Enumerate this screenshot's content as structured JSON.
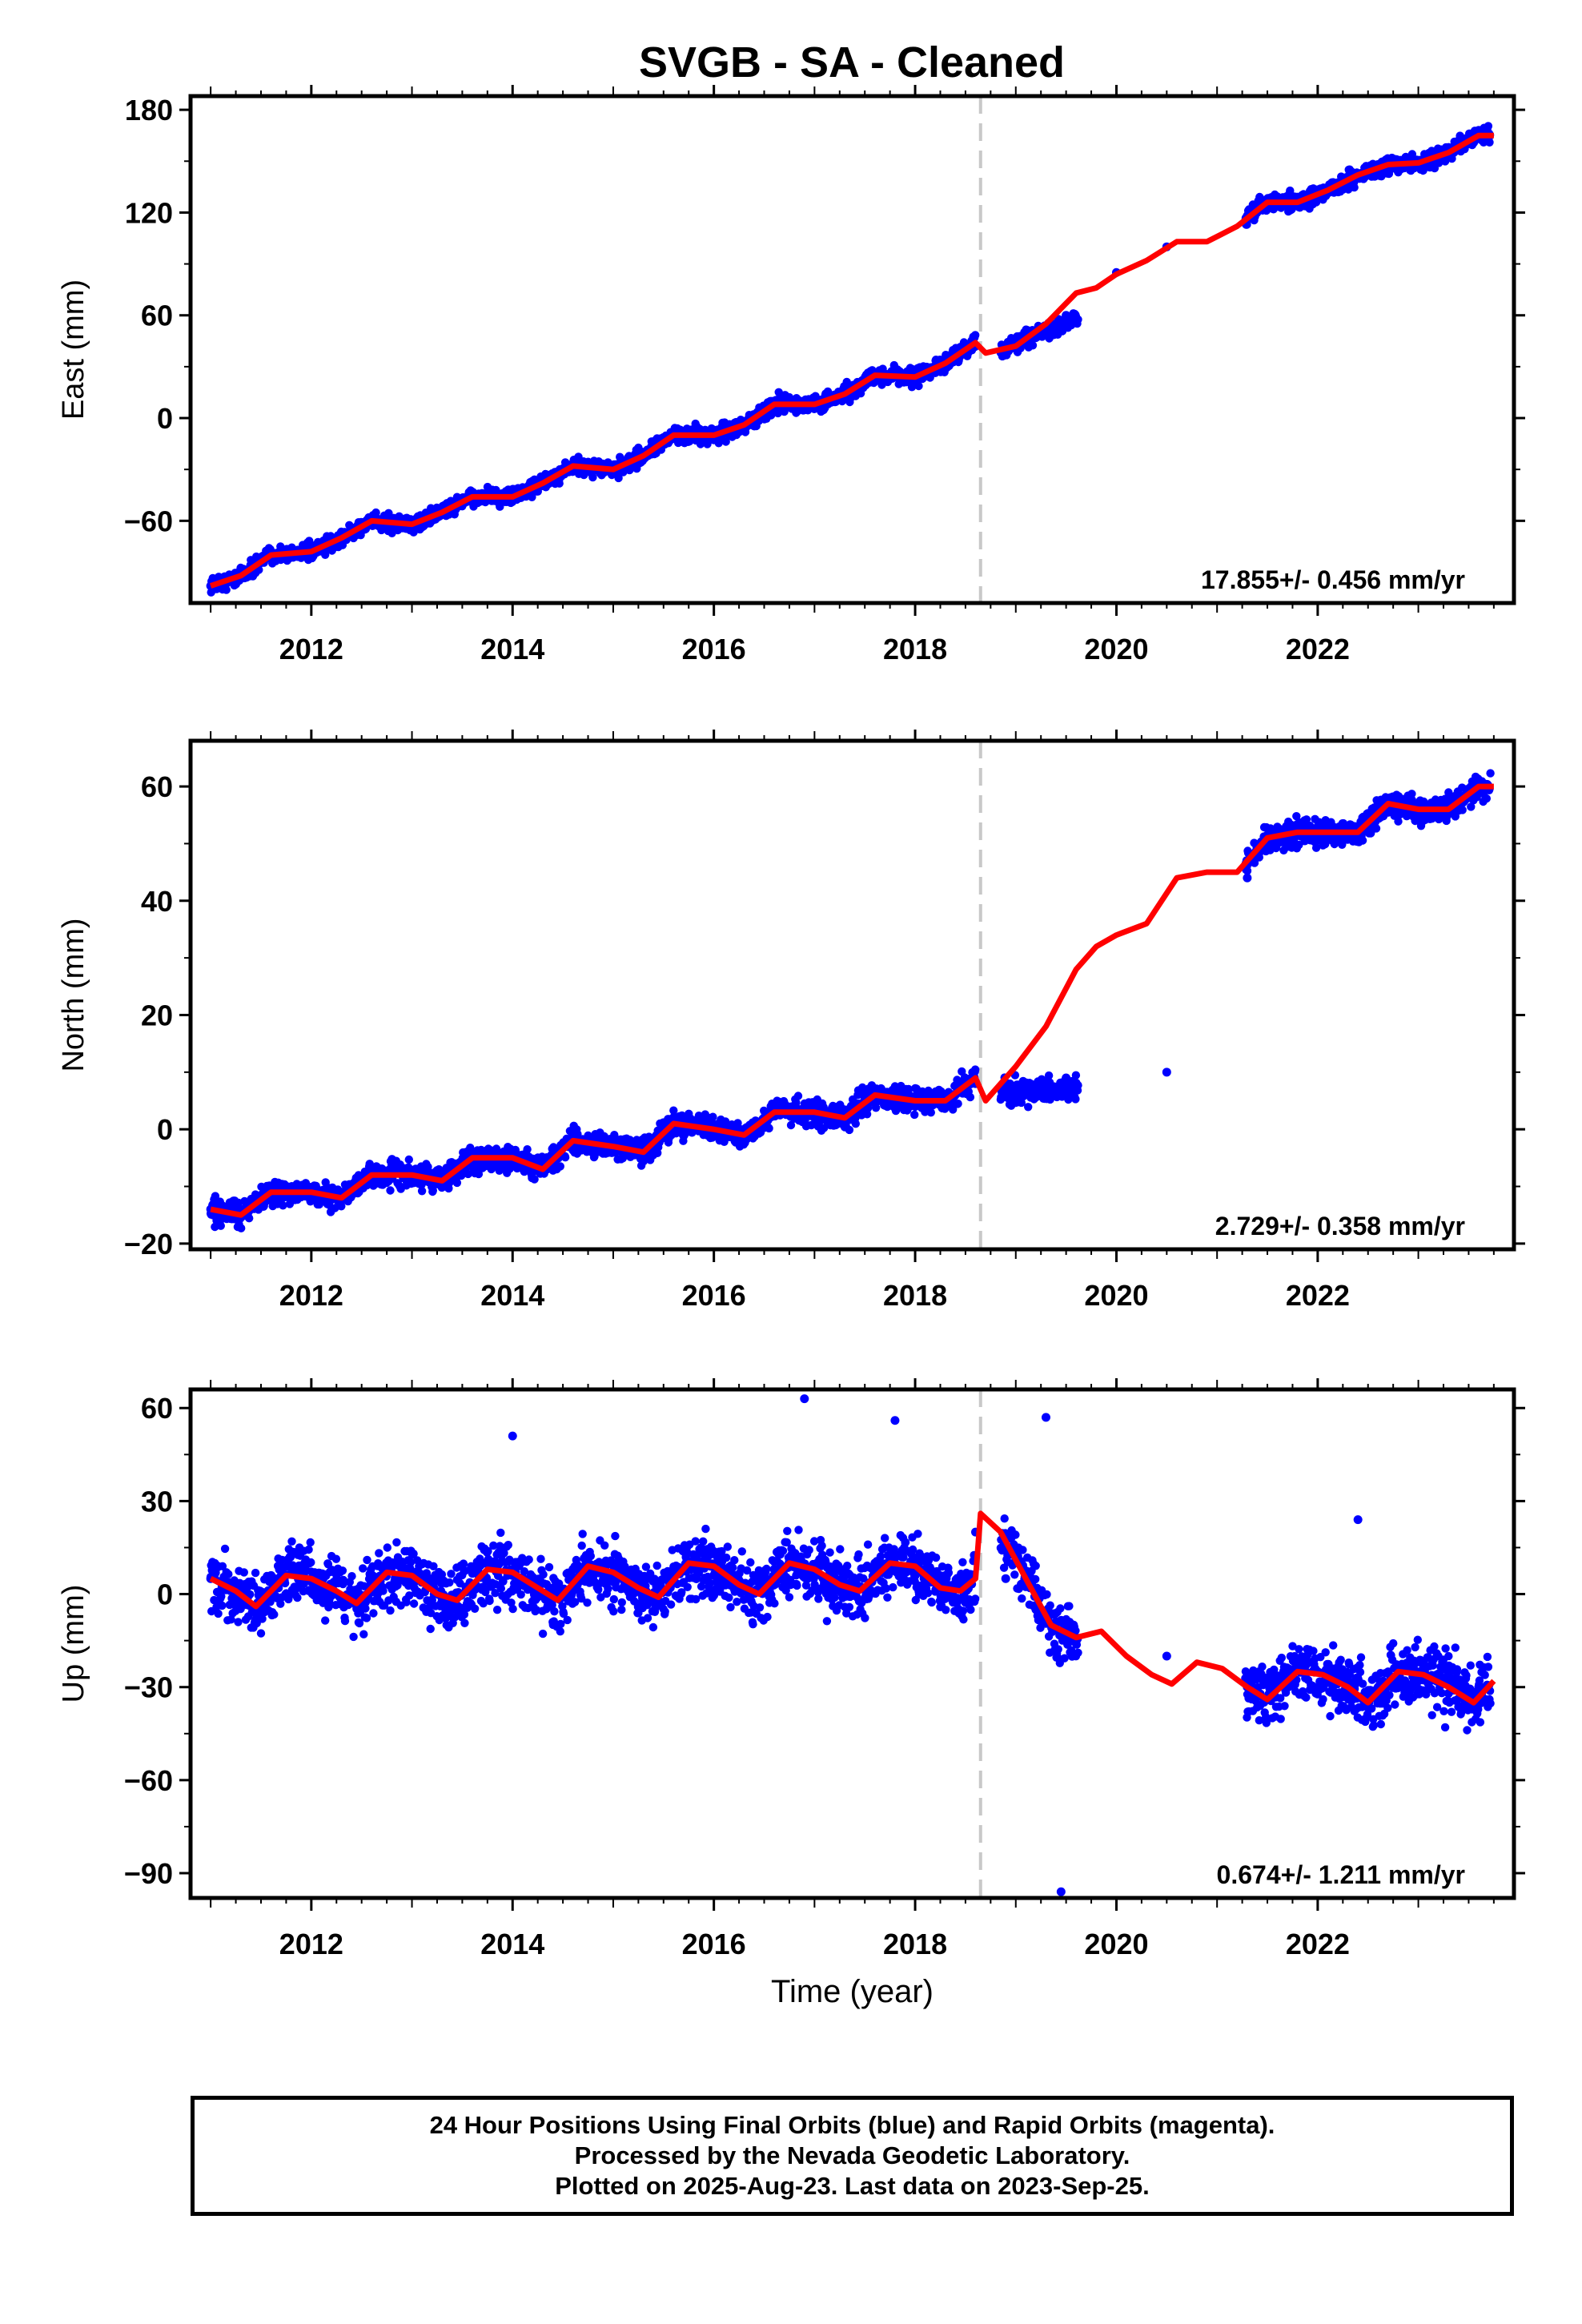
{
  "chart_data": [
    {
      "type": "scatter",
      "title": "SVGB  - SA - Cleaned",
      "ylabel": "East (mm)",
      "xlim": [
        2010.8,
        2023.95
      ],
      "ylim": [
        -108,
        188
      ],
      "yticks": [
        -60,
        0,
        60,
        120,
        180
      ],
      "xticks": [
        2012,
        2014,
        2016,
        2018,
        2020,
        2022
      ],
      "rate_label": "17.855+/- 0.456 mm/yr",
      "grid": false,
      "equipment_change_x": 2018.65,
      "colors": {
        "points": "#0000ff",
        "model": "#ff0000",
        "change_line": "#c0c0c0"
      },
      "series": [
        {
          "x": [
            2011.0,
            2011.3,
            2011.6,
            2012.0,
            2012.3,
            2012.6,
            2013.0,
            2013.3,
            2013.6,
            2014.0,
            2014.3,
            2014.6,
            2015.0,
            2015.3,
            2015.6,
            2016.0,
            2016.3,
            2016.6,
            2017.0,
            2017.3,
            2017.6,
            2018.0,
            2018.3,
            2018.6,
            2018.9,
            2019.2,
            2019.5,
            2020.0,
            2020.5,
            2021.3,
            2021.6,
            2022.0,
            2022.3,
            2022.6,
            2023.0,
            2023.3,
            2023.6
          ],
          "y": [
            -98,
            -88,
            -82,
            -80,
            -70,
            -62,
            -62,
            -55,
            -48,
            -45,
            -38,
            -30,
            -28,
            -20,
            -10,
            -8,
            -2,
            8,
            10,
            15,
            25,
            25,
            32,
            42,
            40,
            48,
            60,
            85,
            100,
            118,
            126,
            128,
            138,
            148,
            150,
            158,
            168
          ]
        },
        {
          "x": [
            2011.0,
            2011.3,
            2011.6,
            2012.0,
            2012.3,
            2012.6,
            2013.0,
            2013.3,
            2013.6,
            2014.0,
            2014.3,
            2014.6,
            2015.0,
            2015.3,
            2015.6,
            2016.0,
            2016.3,
            2016.6,
            2017.0,
            2017.3,
            2017.6,
            2018.0,
            2018.3,
            2018.6,
            2018.7,
            2019.0,
            2019.3,
            2019.6,
            2019.8,
            2020.0,
            2020.3,
            2020.6,
            2020.9,
            2021.2,
            2021.5,
            2021.8,
            2022.1,
            2022.4,
            2022.7,
            2023.0,
            2023.3,
            2023.6,
            2023.75
          ],
          "y": [
            -98,
            -92,
            -80,
            -78,
            -70,
            -60,
            -62,
            -55,
            -46,
            -46,
            -38,
            -28,
            -30,
            -22,
            -10,
            -10,
            -4,
            8,
            8,
            14,
            25,
            24,
            32,
            44,
            38,
            42,
            55,
            73,
            76,
            84,
            92,
            103,
            103,
            112,
            126,
            126,
            133,
            142,
            148,
            149,
            155,
            165,
            165
          ]
        }
      ]
    },
    {
      "type": "scatter",
      "ylabel": "North (mm)",
      "xlim": [
        2010.8,
        2023.95
      ],
      "ylim": [
        -21,
        68
      ],
      "yticks": [
        -20,
        0,
        20,
        40,
        60
      ],
      "xticks": [
        2012,
        2014,
        2016,
        2018,
        2020,
        2022
      ],
      "rate_label": "2.729+/- 0.358 mm/yr",
      "grid": false,
      "equipment_change_x": 2018.65,
      "series": [
        {
          "x": [
            2011.0,
            2011.3,
            2011.6,
            2012.0,
            2012.3,
            2012.6,
            2013.0,
            2013.3,
            2013.6,
            2014.0,
            2014.3,
            2014.6,
            2015.0,
            2015.3,
            2015.6,
            2016.0,
            2016.3,
            2016.6,
            2017.0,
            2017.3,
            2017.6,
            2018.0,
            2018.3,
            2018.6,
            2018.9,
            2019.2,
            2019.5,
            2020.5,
            2021.3,
            2021.6,
            2022.0,
            2022.3,
            2022.6,
            2023.0,
            2023.3,
            2023.6
          ],
          "y": [
            -14,
            -14,
            -10,
            -11,
            -12,
            -8,
            -9,
            -8,
            -4,
            -6,
            -6,
            -2,
            -4,
            -3,
            1,
            -1,
            -1,
            4,
            2,
            2,
            6,
            4,
            5,
            8,
            6,
            7,
            9,
            10,
            44,
            50,
            52,
            52,
            57,
            56,
            56,
            59
          ]
        },
        {
          "x": [
            2011.0,
            2011.3,
            2011.6,
            2012.0,
            2012.3,
            2012.6,
            2013.0,
            2013.3,
            2013.6,
            2014.0,
            2014.3,
            2014.6,
            2015.0,
            2015.3,
            2015.6,
            2016.0,
            2016.3,
            2016.6,
            2017.0,
            2017.3,
            2017.6,
            2018.0,
            2018.3,
            2018.6,
            2018.7,
            2019.0,
            2019.3,
            2019.6,
            2019.8,
            2020.0,
            2020.3,
            2020.6,
            2020.9,
            2021.2,
            2021.5,
            2021.8,
            2022.1,
            2022.4,
            2022.7,
            2023.0,
            2023.3,
            2023.6,
            2023.75
          ],
          "y": [
            -14,
            -15,
            -11,
            -11,
            -12,
            -8,
            -8,
            -9,
            -5,
            -5,
            -7,
            -2,
            -3,
            -4,
            1,
            0,
            -1,
            3,
            3,
            2,
            6,
            5,
            5,
            9,
            5,
            11,
            18,
            28,
            32,
            34,
            36,
            44,
            45,
            45,
            51,
            52,
            52,
            52,
            57,
            56,
            56,
            60,
            60
          ]
        }
      ]
    },
    {
      "type": "scatter",
      "ylabel": "Up (mm)",
      "xlabel": "Time (year)",
      "xlim": [
        2010.8,
        2023.95
      ],
      "ylim": [
        -98,
        66
      ],
      "yticks": [
        -90,
        -60,
        -30,
        0,
        30,
        60
      ],
      "xticks": [
        2012,
        2014,
        2016,
        2018,
        2020,
        2022
      ],
      "rate_label": "0.674+/- 1.211 mm/yr",
      "grid": false,
      "equipment_change_x": 2018.65,
      "series": [
        {
          "x": [
            2011.0,
            2011.3,
            2011.6,
            2012.0,
            2012.3,
            2012.6,
            2013.0,
            2013.3,
            2013.6,
            2014.0,
            2014.3,
            2014.6,
            2015.0,
            2015.3,
            2015.6,
            2016.0,
            2016.3,
            2016.6,
            2017.0,
            2017.3,
            2017.6,
            2018.0,
            2018.3,
            2018.6,
            2018.9,
            2019.2,
            2019.5,
            2020.5,
            2021.3,
            2021.6,
            2022.0,
            2022.3,
            2022.6,
            2023.0,
            2023.3,
            2023.6,
            2014.0,
            2016.9,
            2017.8,
            2019.3,
            2019.45,
            2022.4
          ],
          "y": [
            5,
            0,
            6,
            4,
            -2,
            6,
            4,
            -2,
            8,
            6,
            0,
            8,
            4,
            0,
            8,
            6,
            2,
            8,
            8,
            2,
            10,
            6,
            2,
            20,
            5,
            -5,
            -15,
            -20,
            -30,
            -30,
            -25,
            -32,
            -30,
            -28,
            -32,
            -30,
            51,
            63,
            56,
            57,
            -96,
            24
          ]
        },
        {
          "x": [
            2011.0,
            2011.25,
            2011.45,
            2011.75,
            2012.0,
            2012.25,
            2012.45,
            2012.75,
            2013.0,
            2013.25,
            2013.45,
            2013.75,
            2014.0,
            2014.25,
            2014.45,
            2014.75,
            2015.0,
            2015.25,
            2015.45,
            2015.75,
            2016.0,
            2016.25,
            2016.45,
            2016.75,
            2017.0,
            2017.25,
            2017.45,
            2017.75,
            2018.0,
            2018.25,
            2018.45,
            2018.6,
            2018.65,
            2018.85,
            2019.1,
            2019.35,
            2019.6,
            2019.85,
            2020.1,
            2020.35,
            2020.55,
            2020.8,
            2021.05,
            2021.3,
            2021.5,
            2021.8,
            2022.05,
            2022.3,
            2022.5,
            2022.8,
            2023.05,
            2023.3,
            2023.55,
            2023.75
          ],
          "y": [
            5,
            1,
            -4,
            6,
            5,
            1,
            -3,
            7,
            6,
            0,
            -2,
            8,
            7,
            2,
            -2,
            9,
            7,
            2,
            -1,
            10,
            9,
            3,
            0,
            10,
            8,
            3,
            1,
            10,
            9,
            2,
            1,
            5,
            26,
            20,
            5,
            -10,
            -14,
            -12,
            -20,
            -26,
            -29,
            -22,
            -24,
            -30,
            -34,
            -25,
            -26,
            -30,
            -35,
            -25,
            -26,
            -30,
            -35,
            -28
          ]
        }
      ]
    }
  ],
  "footer": {
    "line1": "24 Hour Positions Using Final Orbits (blue) and Rapid Orbits (magenta).",
    "line2": "Processed by the Nevada Geodetic Laboratory.",
    "line3": "Plotted on 2025-Aug-23. Last data on 2023-Sep-25."
  }
}
